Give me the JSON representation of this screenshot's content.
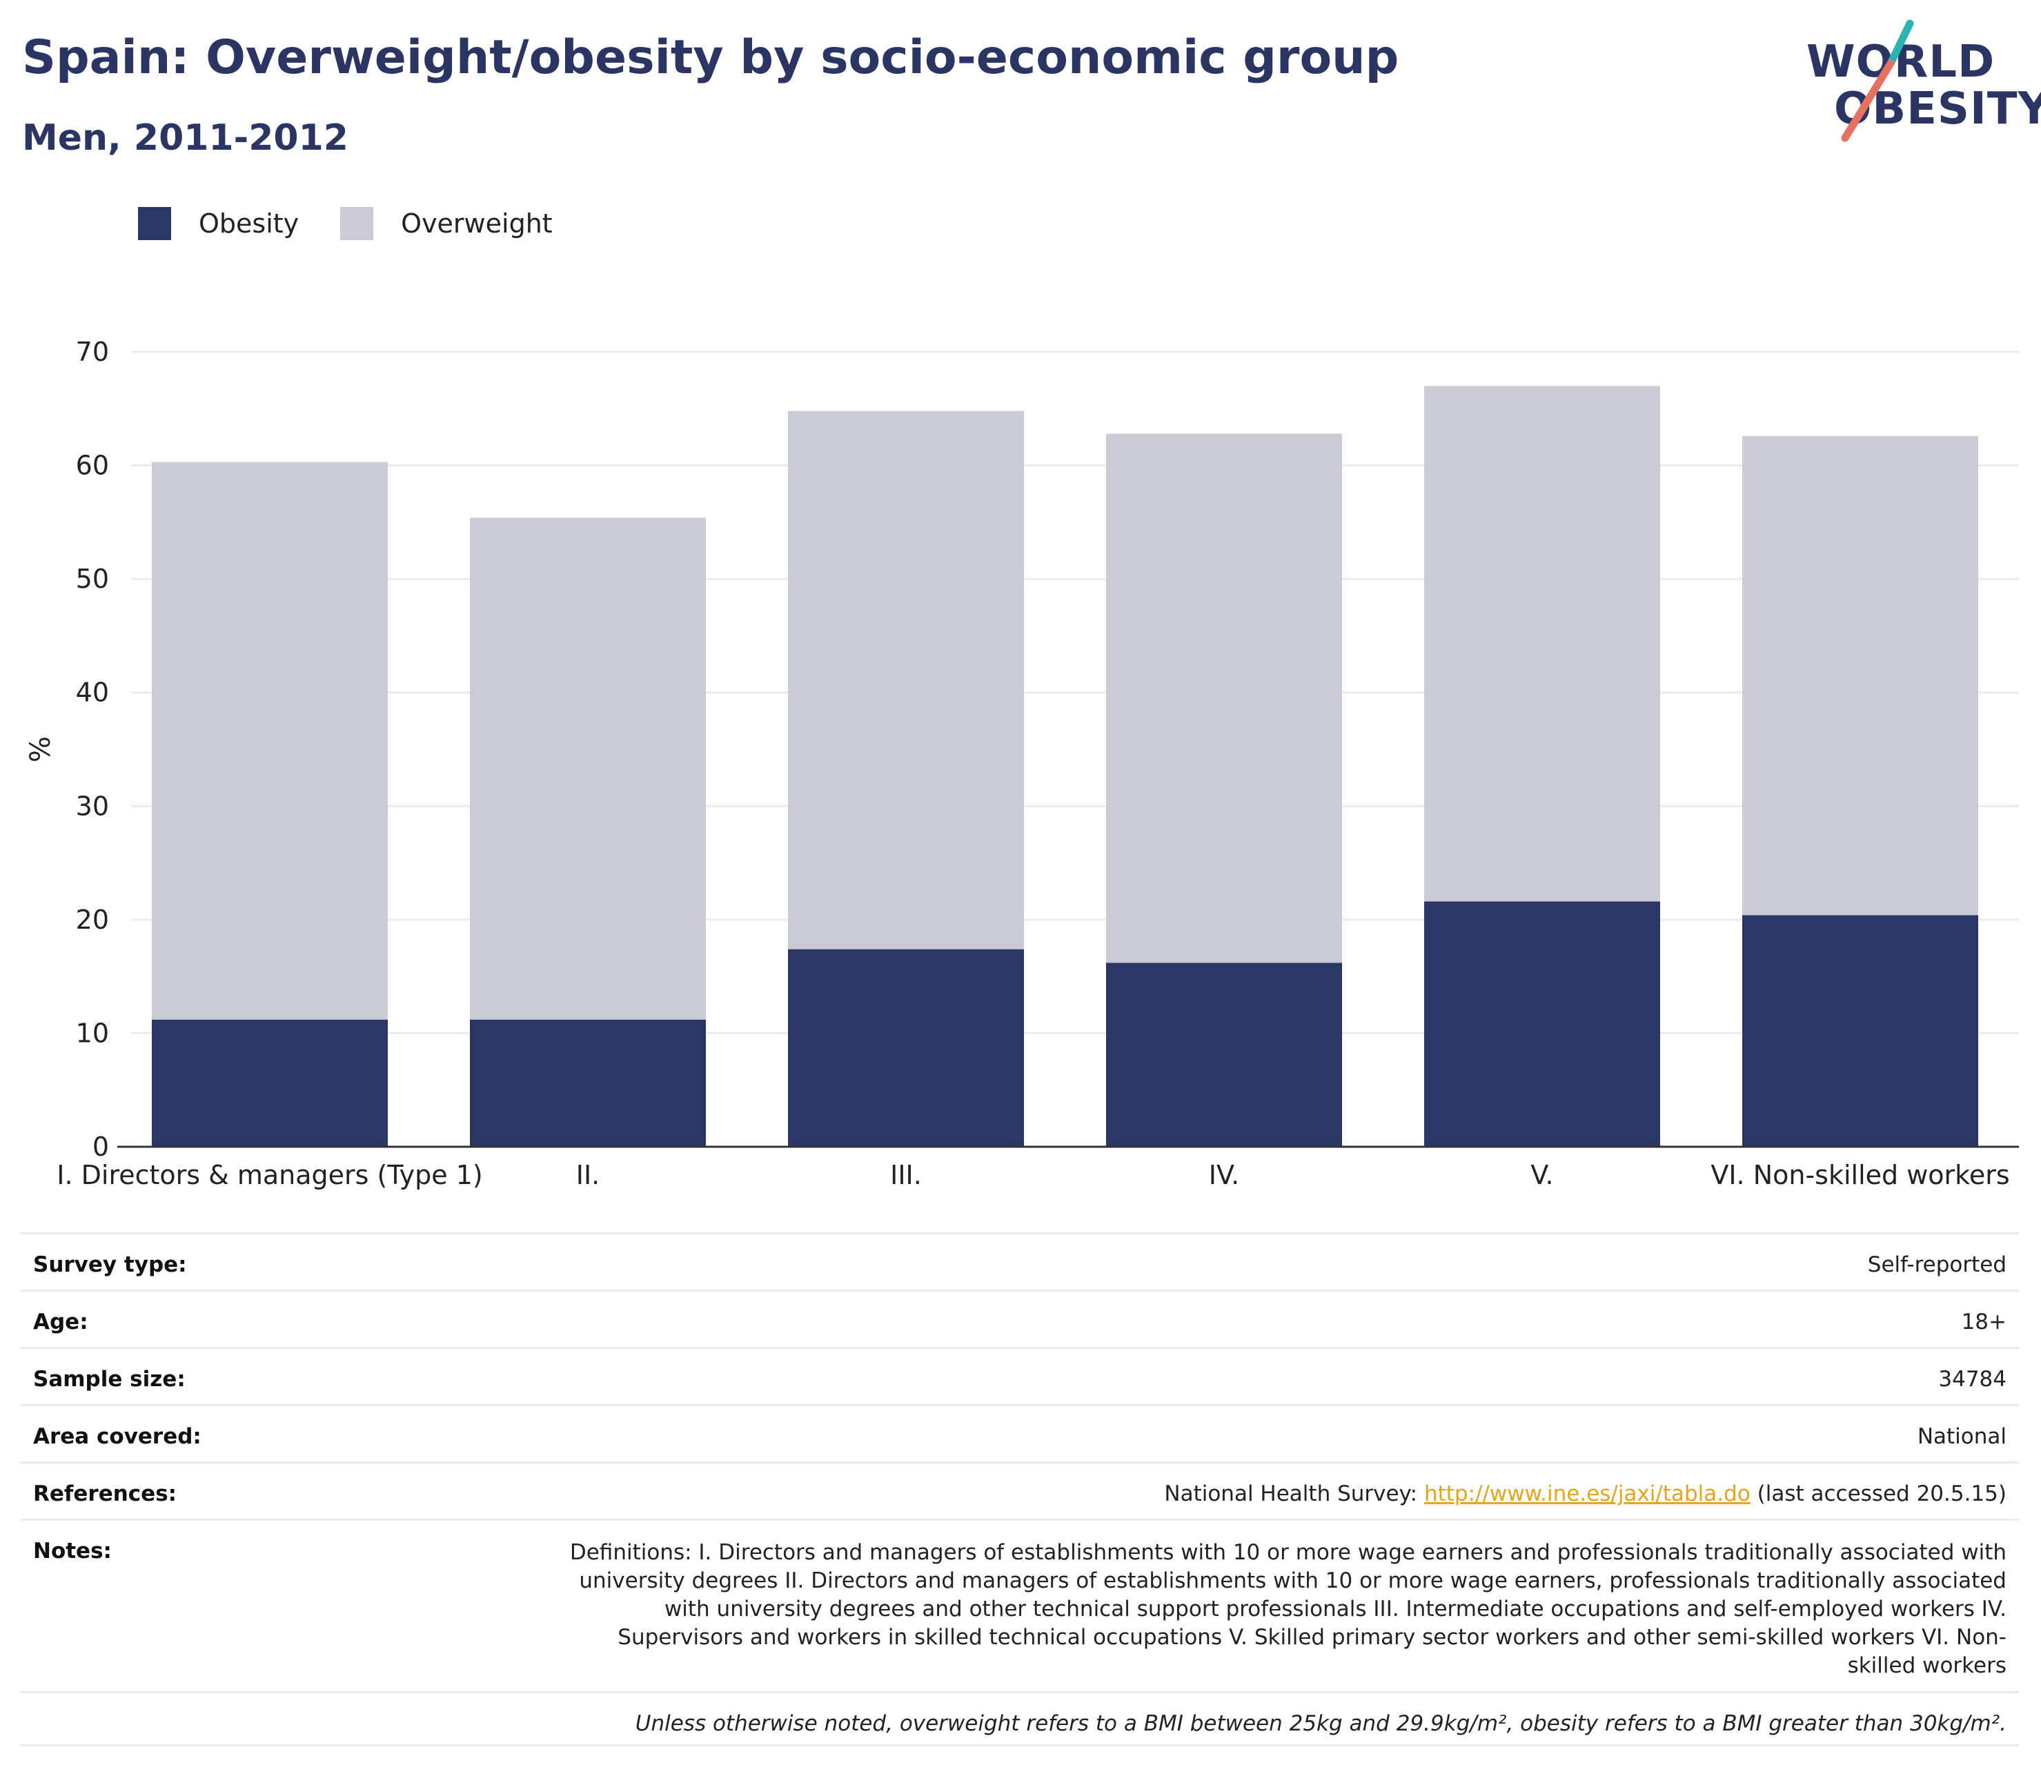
{
  "title": "Spain: Overweight/obesity by socio-economic group",
  "subtitle": "Men, 2011-2012",
  "logo": {
    "line1": "WORLD",
    "line2": "OBESITY"
  },
  "colors": {
    "obesity": "#2a3664",
    "overweight": "#c9cbd7",
    "accent_teal": "#2bb5b2",
    "accent_coral": "#e8705f",
    "link": "#e8a41a"
  },
  "legend": [
    {
      "label": "Obesity",
      "color": "#2a3664"
    },
    {
      "label": "Overweight",
      "color": "#c9cbd7"
    }
  ],
  "chart_data": {
    "type": "bar",
    "stacked": true,
    "categories": [
      "I. Directors & managers (Type 1)",
      "II.",
      "III.",
      "IV.",
      "V.",
      "VI. Non-skilled workers"
    ],
    "series": [
      {
        "name": "Obesity",
        "values": [
          11.2,
          11.2,
          17.4,
          16.2,
          21.6,
          20.4
        ]
      },
      {
        "name": "Overweight",
        "values": [
          49.1,
          44.2,
          47.4,
          46.6,
          45.4,
          42.2
        ]
      }
    ],
    "ylabel": "%",
    "xlabel": "",
    "ylim": [
      0,
      70
    ],
    "yticks": [
      0,
      10,
      20,
      30,
      40,
      50,
      60,
      70
    ],
    "grid": true,
    "legend_position": "top-left"
  },
  "table": {
    "survey_type": {
      "label": "Survey type:",
      "value": "Self-reported"
    },
    "age": {
      "label": "Age:",
      "value": "18+"
    },
    "sample_size": {
      "label": "Sample size:",
      "value": "34784"
    },
    "area": {
      "label": "Area covered:",
      "value": "National"
    },
    "references": {
      "label": "References:",
      "prefix": "National Health Survey: ",
      "link": "http://www.ine.es/jaxi/tabla.do",
      "suffix": " (last accessed 20.5.15)"
    },
    "notes": {
      "label": "Notes:",
      "value": "Definitions: I. Directors and managers of establishments with 10 or more wage earners and professionals traditionally associated with university degrees II. Directors and managers of establishments with 10 or more wage earners, professionals traditionally associated with university degrees and other technical support professionals III. Intermediate occupations and self-employed workers IV. Supervisors and workers in skilled technical occupations V. Skilled primary sector workers and other semi-skilled workers VI. Non-skilled workers"
    }
  },
  "footnote": "Unless otherwise noted, overweight refers to a BMI between 25kg and 29.9kg/m², obesity refers to a BMI greater than 30kg/m²."
}
